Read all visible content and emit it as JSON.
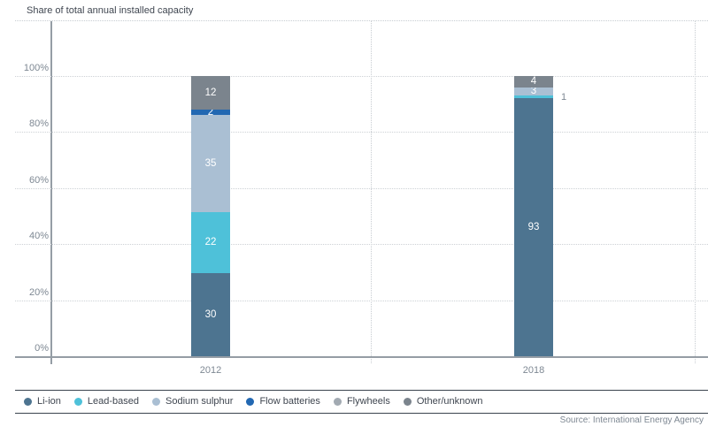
{
  "source": "Source: International Energy Agency",
  "chart_data": {
    "type": "bar",
    "variant": "stacked-percent",
    "title": "Share of total annual installed capacity",
    "categories": [
      "2012",
      "2018"
    ],
    "series": [
      {
        "name": "Li-ion",
        "color": "#4d7490",
        "values": [
          30,
          93
        ]
      },
      {
        "name": "Lead-based",
        "color": "#4ec1d9",
        "values": [
          22,
          1
        ]
      },
      {
        "name": "Sodium sulphur",
        "color": "#aabfd3",
        "values": [
          35,
          3
        ]
      },
      {
        "name": "Flow batteries",
        "color": "#2268b2",
        "values": [
          2,
          0
        ]
      },
      {
        "name": "Flywheels",
        "color": "#a2aab2",
        "values": [
          0,
          0
        ]
      },
      {
        "name": "Other/unknown",
        "color": "#7b848d",
        "values": [
          12,
          4
        ]
      }
    ],
    "y_ticks": [
      "100%",
      "80%",
      "60%",
      "40%",
      "20%",
      "0%"
    ],
    "ylim": [
      0,
      100
    ],
    "ylabel": "",
    "xlabel": "",
    "grid": "horizontal-dotted",
    "legend_position": "bottom"
  }
}
